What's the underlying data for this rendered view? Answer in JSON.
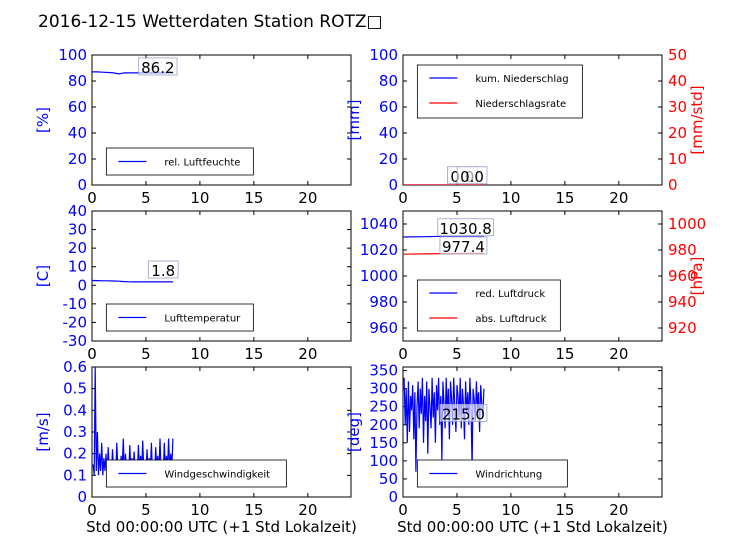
{
  "title": "2016-12-15 Wetterdaten Station ROTZ□",
  "colors": {
    "primary": "#0000ff",
    "secondary": "#ff0000",
    "frame": "#000000"
  },
  "chart_data": [
    {
      "type": "line",
      "xlim": [
        0,
        24
      ],
      "xticks": [
        0,
        5,
        10,
        15,
        20
      ],
      "xlabel": "",
      "ylim": [
        0,
        100
      ],
      "yticks": [
        0,
        20,
        40,
        60,
        80,
        100
      ],
      "ylabel": "[%]",
      "series": [
        {
          "name": "rel. Luftfeuchte",
          "axis": "left",
          "style": "line",
          "x": [
            0,
            0.5,
            1,
            1.5,
            2,
            2.5,
            3,
            3.5,
            4,
            4.5,
            5,
            5.5,
            6,
            6.5,
            7,
            7.5
          ],
          "y": [
            87,
            87,
            86.8,
            86.5,
            86.2,
            85.5,
            86.3,
            86.2,
            86.2,
            86.2,
            86.2,
            86.2,
            86.2,
            86.2,
            86.2,
            86.2
          ]
        }
      ],
      "legend": {
        "placement": "lower-center"
      },
      "annotations": [
        {
          "text": "86.2",
          "x": 6.1,
          "y": 86.2
        }
      ]
    },
    {
      "type": "line",
      "xlim": [
        0,
        24
      ],
      "xticks": [
        0,
        5,
        10,
        15,
        20
      ],
      "xlabel": "",
      "ylim": [
        0,
        100
      ],
      "yticks": [
        0,
        20,
        40,
        60,
        80,
        100
      ],
      "ylabel": "[mm]",
      "y2lim": [
        0,
        50
      ],
      "y2ticks": [
        0,
        10,
        20,
        30,
        40,
        50
      ],
      "y2label": "[mm/std]",
      "series": [
        {
          "name": "kum. Niederschlag",
          "axis": "left",
          "style": "line",
          "x": [
            0,
            7.5
          ],
          "y": [
            0,
            0
          ]
        },
        {
          "name": "Niederschlagsrate",
          "axis": "right",
          "style": "line",
          "x": [
            0,
            7.5
          ],
          "y": [
            0,
            0
          ]
        }
      ],
      "legend": {
        "placement": "upper-left"
      },
      "annotations": [
        {
          "text": "0.0",
          "x": 5.5,
          "y": 2.5
        },
        {
          "text": "0.0",
          "x": 6.4,
          "y": 2.5
        }
      ]
    },
    {
      "type": "line",
      "xlim": [
        0,
        24
      ],
      "xticks": [
        0,
        5,
        10,
        15,
        20
      ],
      "xlabel": "",
      "ylim": [
        -30,
        40
      ],
      "yticks": [
        -30,
        -20,
        -10,
        0,
        10,
        20,
        30,
        40
      ],
      "ylabel": "[C]",
      "series": [
        {
          "name": "Lufttemperatur",
          "axis": "left",
          "style": "line",
          "x": [
            0,
            0.5,
            1,
            1.5,
            2,
            2.5,
            3,
            3.5,
            4,
            4.5,
            5,
            5.5,
            6,
            6.5,
            7,
            7.5
          ],
          "y": [
            2.6,
            2.5,
            2.4,
            2.4,
            2.3,
            2.2,
            2,
            1.9,
            1.8,
            1.8,
            1.8,
            1.8,
            1.8,
            1.8,
            1.8,
            1.8
          ]
        }
      ],
      "legend": {
        "placement": "lower-center"
      },
      "annotations": [
        {
          "text": "1.8",
          "x": 6.6,
          "y": 5
        }
      ]
    },
    {
      "type": "line",
      "xlim": [
        0,
        24
      ],
      "xticks": [
        0,
        5,
        10,
        15,
        20
      ],
      "xlabel": "",
      "ylim": [
        950,
        1050
      ],
      "yticks": [
        960,
        980,
        1000,
        1020,
        1040
      ],
      "ylabel": "",
      "y2lim": [
        910,
        1010
      ],
      "y2ticks": [
        920,
        940,
        960,
        980,
        1000
      ],
      "y2label": "[hPa]",
      "series": [
        {
          "name": "red. Luftdruck",
          "axis": "left",
          "style": "line",
          "x": [
            0,
            2,
            4,
            6,
            7.5
          ],
          "y": [
            1030,
            1030.2,
            1030.5,
            1030.8,
            1030.8
          ]
        },
        {
          "name": "abs. Luftdruck",
          "axis": "right",
          "style": "line",
          "x": [
            0,
            2,
            4,
            6,
            7.5
          ],
          "y": [
            976.8,
            977,
            977.2,
            977.4,
            977.4
          ]
        }
      ],
      "legend": {
        "placement": "lower-left"
      },
      "annotations": [
        {
          "text": "1030.8",
          "x": 5.8,
          "y": 1032.5
        },
        {
          "text": "977.4",
          "x": 5.6,
          "y": 978.5,
          "axis": "right"
        }
      ]
    },
    {
      "type": "line",
      "xlim": [
        0,
        24
      ],
      "xticks": [
        0,
        5,
        10,
        15,
        20
      ],
      "xlabel": "Std 00:00:00 UTC (+1 Std Lokalzeit)",
      "ylim": [
        0,
        0.6
      ],
      "yticks": [
        0,
        0.1,
        0.2,
        0.3,
        0.4,
        0.5,
        0.6
      ],
      "ylabel": "[m/s]",
      "series": [
        {
          "name": "Windgeschwindigkeit",
          "axis": "left",
          "style": "line",
          "x": [
            0.1,
            0.2,
            0.3,
            0.4,
            0.5,
            0.6,
            0.7,
            0.8,
            0.9,
            1.0,
            1.1,
            1.2,
            1.3,
            1.4,
            1.5,
            1.6,
            1.7,
            1.8,
            1.9,
            2.0,
            2.1,
            2.2,
            2.3,
            2.4,
            2.5,
            2.6,
            2.7,
            2.8,
            2.9,
            3.0,
            3.1,
            3.2,
            3.3,
            3.4,
            3.5,
            3.6,
            3.7,
            3.8,
            3.9,
            4.0,
            4.1,
            4.2,
            4.3,
            4.4,
            4.5,
            4.6,
            4.7,
            4.8,
            4.9,
            5.0,
            5.1,
            5.2,
            5.3,
            5.4,
            5.5,
            5.6,
            5.7,
            5.8,
            5.9,
            6.0,
            6.1,
            6.2,
            6.3,
            6.4,
            6.5,
            6.6,
            6.7,
            6.8,
            6.9,
            7.0,
            7.1,
            7.2,
            7.3,
            7.4,
            7.5
          ],
          "y": [
            0.15,
            0.1,
            0.6,
            0.12,
            0.3,
            0.1,
            0.2,
            0.12,
            0.25,
            0.1,
            0.18,
            0.12,
            0.2,
            0.1,
            0.23,
            0.12,
            0.15,
            0.1,
            0.22,
            0.12,
            0.17,
            0.1,
            0.25,
            0.12,
            0.15,
            0.1,
            0.19,
            0.13,
            0.27,
            0.1,
            0.2,
            0.12,
            0.16,
            0.1,
            0.24,
            0.13,
            0.18,
            0.11,
            0.21,
            0.12,
            0.16,
            0.1,
            0.24,
            0.13,
            0.19,
            0.11,
            0.26,
            0.12,
            0.17,
            0.1,
            0.22,
            0.13,
            0.18,
            0.11,
            0.25,
            0.12,
            0.16,
            0.1,
            0.23,
            0.13,
            0.19,
            0.11,
            0.27,
            0.12,
            0.17,
            0.1,
            0.25,
            0.13,
            0.19,
            0.12,
            0.27,
            0.13,
            0.2,
            0.14,
            0.27
          ]
        }
      ],
      "legend": {
        "placement": "lower-center"
      },
      "annotations": []
    },
    {
      "type": "line",
      "xlim": [
        0,
        24
      ],
      "xticks": [
        0,
        5,
        10,
        15,
        20
      ],
      "xlabel": "Std 00:00:00 UTC (+1 Std Lokalzeit)",
      "ylim": [
        0,
        360
      ],
      "yticks": [
        0,
        50,
        100,
        150,
        200,
        250,
        300,
        350
      ],
      "ylabel": "[deg]",
      "series": [
        {
          "name": "Windrichtung",
          "axis": "left",
          "style": "line",
          "x": [
            0.1,
            0.2,
            0.3,
            0.4,
            0.5,
            0.6,
            0.7,
            0.8,
            0.9,
            1.0,
            1.1,
            1.2,
            1.3,
            1.4,
            1.5,
            1.6,
            1.7,
            1.8,
            1.9,
            2.0,
            2.1,
            2.2,
            2.3,
            2.4,
            2.5,
            2.6,
            2.7,
            2.8,
            2.9,
            3.0,
            3.1,
            3.2,
            3.3,
            3.4,
            3.5,
            3.6,
            3.7,
            3.8,
            3.9,
            4.0,
            4.1,
            4.2,
            4.3,
            4.4,
            4.5,
            4.6,
            4.7,
            4.8,
            4.9,
            5.0,
            5.1,
            5.2,
            5.3,
            5.4,
            5.5,
            5.6,
            5.7,
            5.8,
            5.9,
            6.0,
            6.1,
            6.2,
            6.3,
            6.4,
            6.5,
            6.6,
            6.7,
            6.8,
            6.9,
            7.0,
            7.1,
            7.2,
            7.3,
            7.4,
            7.5
          ],
          "y": [
            330,
            200,
            300,
            150,
            320,
            180,
            280,
            240,
            310,
            160,
            290,
            70,
            250,
            320,
            190,
            300,
            230,
            330,
            150,
            280,
            210,
            320,
            120,
            300,
            250,
            190,
            330,
            220,
            290,
            150,
            310,
            240,
            330,
            200,
            280,
            100,
            320,
            260,
            190,
            330,
            230,
            300,
            160,
            320,
            270,
            200,
            330,
            250,
            180,
            310,
            280,
            220,
            330,
            190,
            300,
            260,
            160,
            320,
            230,
            290,
            200,
            330,
            250,
            80,
            300,
            270,
            210,
            320,
            240,
            290,
            180,
            310,
            260,
            220,
            300
          ]
        }
      ],
      "legend": {
        "placement": "lower-center"
      },
      "annotations": [
        {
          "text": "215.0",
          "x": 5.6,
          "y": 215
        }
      ]
    }
  ]
}
